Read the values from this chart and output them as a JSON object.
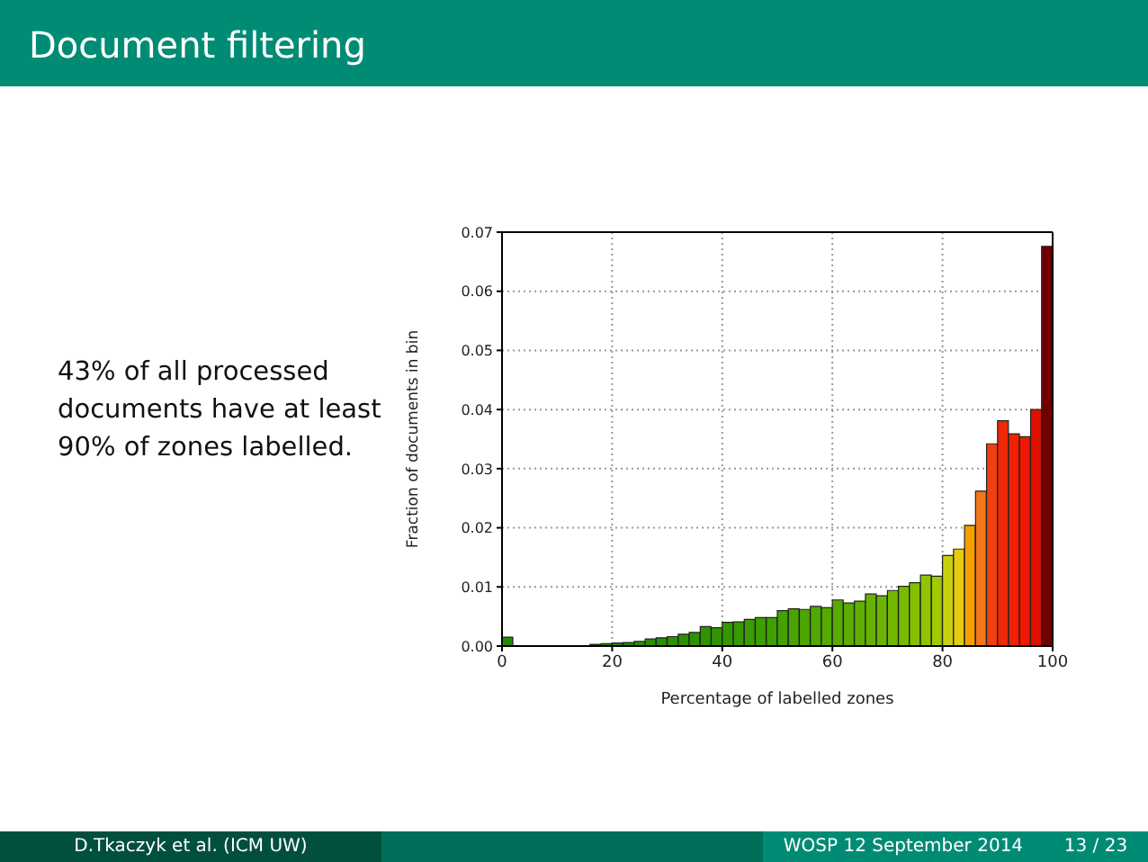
{
  "chart_data": {
    "type": "histogram",
    "title": "Document filtering",
    "xlabel": "Percentage of labelled zones",
    "ylabel": "Fraction of documents in bin",
    "bins": [
      0,
      2,
      4,
      6,
      8,
      10,
      12,
      14,
      16,
      18,
      20,
      22,
      24,
      26,
      28,
      30,
      32,
      34,
      36,
      38,
      40,
      42,
      44,
      46,
      48,
      50,
      52,
      54,
      56,
      58,
      60,
      62,
      64,
      66,
      68,
      70,
      72,
      74,
      76,
      78,
      80,
      82,
      84,
      86,
      88,
      90,
      92,
      94,
      96,
      98,
      100
    ],
    "values": [
      0.0015,
      0,
      0,
      0,
      0,
      0,
      0,
      0,
      0.0003,
      0.0004,
      0.0005,
      0.0006,
      0.0008,
      0.0012,
      0.0014,
      0.0016,
      0.002,
      0.0023,
      0.0033,
      0.0031,
      0.004,
      0.0041,
      0.0045,
      0.0048,
      0.0048,
      0.006,
      0.0063,
      0.0062,
      0.0067,
      0.0065,
      0.0078,
      0.0073,
      0.0076,
      0.0088,
      0.0085,
      0.0094,
      0.0101,
      0.0107,
      0.012,
      0.0118,
      0.0153,
      0.0164,
      0.0204,
      0.0262,
      0.0342,
      0.0381,
      0.0359,
      0.0354,
      0.04,
      0.0676
    ],
    "colors": [
      "#238b00",
      "#238b00",
      "#238b00",
      "#238b00",
      "#238b00",
      "#238b00",
      "#238b00",
      "#238b00",
      "#238b00",
      "#238b00",
      "#268d00",
      "#268d00",
      "#268d00",
      "#298f00",
      "#298f00",
      "#2c9100",
      "#2c9100",
      "#2f9300",
      "#2f9300",
      "#329500",
      "#359700",
      "#389900",
      "#3b9b00",
      "#3e9d00",
      "#41a000",
      "#44a200",
      "#48a400",
      "#4ca600",
      "#50a800",
      "#54aa00",
      "#58ac00",
      "#5cae00",
      "#61b000",
      "#66b200",
      "#6bb400",
      "#72b700",
      "#7aba00",
      "#84bf00",
      "#90c400",
      "#a0c900",
      "#c8d010",
      "#e6cc10",
      "#f5a000",
      "#f07818",
      "#f04010",
      "#f02808",
      "#f02000",
      "#f01800",
      "#e01000",
      "#700000"
    ],
    "xlim": [
      0,
      100
    ],
    "xticks": [
      0,
      20,
      40,
      60,
      80,
      100
    ],
    "ylim": [
      0,
      0.07
    ],
    "yticks": [
      {
        "value": 0,
        "label": "0.00"
      },
      {
        "value": 0.01,
        "label": "0.01"
      },
      {
        "value": 0.02,
        "label": "0.02"
      },
      {
        "value": 0.03,
        "label": "0.03"
      },
      {
        "value": 0.04,
        "label": "0.04"
      },
      {
        "value": 0.05,
        "label": "0.05"
      },
      {
        "value": 0.06,
        "label": "0.06"
      },
      {
        "value": 0.07,
        "label": "0.07"
      }
    ],
    "grid": true,
    "annotations": [
      "43% of all processed documents have at least 90% of zones labelled.",
      "D.Tkaczyk et al. (ICM UW)",
      "WOSP 12 September 2014",
      "13 / 23"
    ]
  }
}
